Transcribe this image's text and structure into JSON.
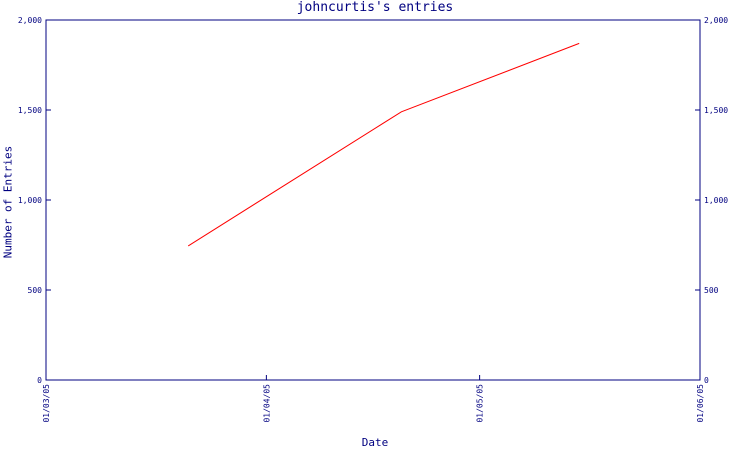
{
  "chart_data": {
    "type": "line",
    "title": "johncurtis's entries",
    "xlabel": "Date",
    "ylabel": "Number of Entries",
    "x_ticks": [
      "01/03/05",
      "01/04/05",
      "01/05/05",
      "01/06/05"
    ],
    "ylim": [
      0,
      2000
    ],
    "y_ticks": [
      "0",
      "500",
      "1,000",
      "1,500",
      "2,000"
    ],
    "y_tick_values": [
      0,
      500,
      1000,
      1500,
      2000
    ],
    "series": [
      {
        "points": [
          {
            "x": "2005-03-21",
            "y": 745
          },
          {
            "x": "2005-04-20",
            "y": 1490
          },
          {
            "x": "2005-05-15",
            "y": 1870
          }
        ]
      }
    ],
    "grid": false,
    "axis_color": "#000080",
    "line_color": "#ff0000"
  }
}
